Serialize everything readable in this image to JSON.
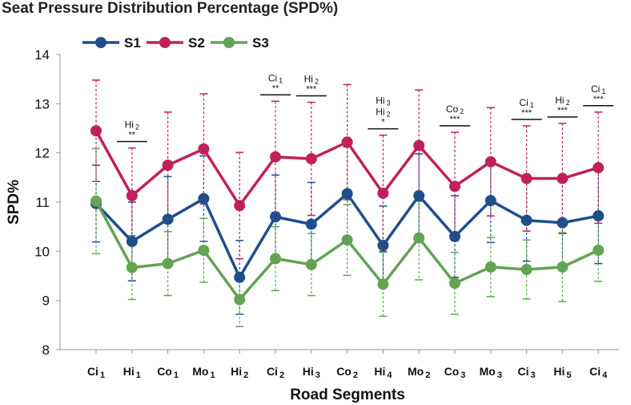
{
  "chart_data": {
    "type": "line",
    "title": "Seat Pressure Distribution Percentage (SPD%)",
    "xlabel": "Road Segments",
    "ylabel": "SPD%",
    "ylim": [
      8,
      14
    ],
    "yticks": [
      "8",
      "9",
      "10",
      "11",
      "12",
      "13",
      "14"
    ],
    "categories": [
      {
        "base": "Ci",
        "sub": "1"
      },
      {
        "base": "Hi",
        "sub": "1"
      },
      {
        "base": "Co",
        "sub": "1"
      },
      {
        "base": "Mo",
        "sub": "1"
      },
      {
        "base": "Hi",
        "sub": "2"
      },
      {
        "base": "Ci",
        "sub": "2"
      },
      {
        "base": "Hi",
        "sub": "3"
      },
      {
        "base": "Co",
        "sub": "2"
      },
      {
        "base": "Hi",
        "sub": "4"
      },
      {
        "base": "Mo",
        "sub": "2"
      },
      {
        "base": "Co",
        "sub": "3"
      },
      {
        "base": "Mo",
        "sub": "3"
      },
      {
        "base": "Ci",
        "sub": "3"
      },
      {
        "base": "Hi",
        "sub": "5"
      },
      {
        "base": "Ci",
        "sub": "4"
      }
    ],
    "series": [
      {
        "name": "S1",
        "color": "#1f4e8c",
        "values": [
          10.97,
          10.2,
          10.65,
          11.07,
          9.47,
          10.7,
          10.55,
          11.17,
          10.12,
          11.13,
          10.3,
          11.03,
          10.63,
          10.58,
          10.72
        ],
        "err": [
          0.78,
          0.8,
          0.87,
          0.87,
          0.75,
          0.85,
          0.85,
          0.95,
          0.8,
          0.85,
          0.83,
          0.85,
          0.83,
          0.85,
          0.97
        ]
      },
      {
        "name": "S2",
        "color": "#c0215a",
        "values": [
          12.45,
          11.13,
          11.75,
          12.08,
          10.93,
          11.92,
          11.88,
          12.22,
          11.18,
          12.15,
          11.32,
          11.82,
          11.48,
          11.48,
          11.7
        ],
        "err": [
          1.03,
          0.97,
          1.08,
          1.12,
          1.08,
          1.13,
          1.15,
          1.17,
          1.18,
          1.13,
          1.1,
          1.1,
          1.07,
          1.12,
          1.13
        ]
      },
      {
        "name": "S3",
        "color": "#62a354",
        "values": [
          11.02,
          9.67,
          9.75,
          10.02,
          9.02,
          9.85,
          9.73,
          10.23,
          9.33,
          10.27,
          9.35,
          9.68,
          9.63,
          9.68,
          10.02
        ],
        "err": [
          1.07,
          0.65,
          0.65,
          0.65,
          0.55,
          0.65,
          0.63,
          0.72,
          0.65,
          0.85,
          0.63,
          0.6,
          0.6,
          0.7,
          0.63
        ]
      }
    ],
    "annotations": [
      {
        "index": 1,
        "lines": [
          {
            "base": "Hi",
            "sub": "2"
          }
        ],
        "stars": "**"
      },
      {
        "index": 5,
        "lines": [
          {
            "base": "Ci",
            "sub": "1"
          }
        ],
        "stars": "**"
      },
      {
        "index": 6,
        "lines": [
          {
            "base": "Hi",
            "sub": "2"
          }
        ],
        "stars": "***"
      },
      {
        "index": 8,
        "lines": [
          {
            "base": "Hi",
            "sub": "3"
          },
          {
            "base": "Hi",
            "sub": "2"
          }
        ],
        "stars": "*"
      },
      {
        "index": 10,
        "lines": [
          {
            "base": "Co",
            "sub": "2"
          }
        ],
        "stars": "***"
      },
      {
        "index": 12,
        "lines": [
          {
            "base": "Ci",
            "sub": "1"
          }
        ],
        "stars": "***"
      },
      {
        "index": 13,
        "lines": [
          {
            "base": "Hi",
            "sub": "2"
          }
        ],
        "stars": "***"
      },
      {
        "index": 14,
        "lines": [
          {
            "base": "Ci",
            "sub": "1"
          }
        ],
        "stars": "***"
      }
    ],
    "legend": {
      "position": "top-left"
    }
  }
}
